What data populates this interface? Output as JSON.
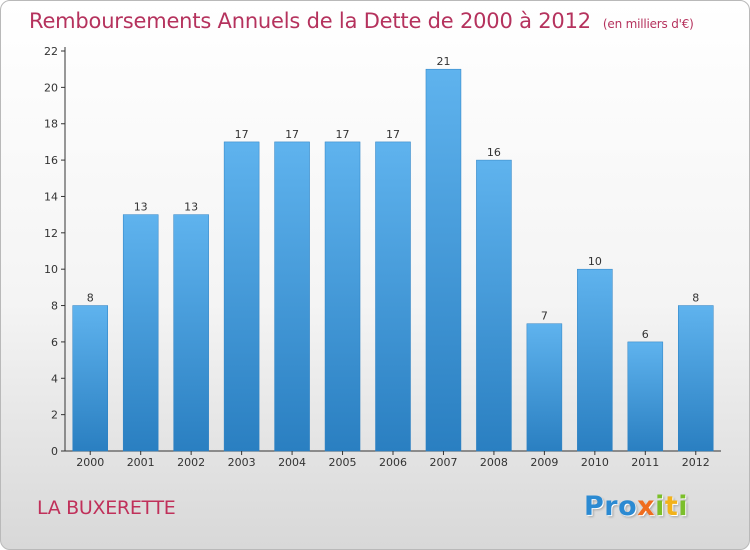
{
  "title": "Remboursements Annuels de la Dette de 2000 à 2012",
  "unit": "(en milliers d'€)",
  "commune": "LA BUXERETTE",
  "logo_text": "Proxiti",
  "colors": {
    "title": "#b5325d",
    "bar_top": "#5fb3ee",
    "bar_bottom": "#2a7fc1",
    "axis": "#333333"
  },
  "chart_data": {
    "type": "bar",
    "title": "Remboursements Annuels de la Dette de 2000 à 2012",
    "categories": [
      "2000",
      "2001",
      "2002",
      "2003",
      "2004",
      "2005",
      "2006",
      "2007",
      "2008",
      "2009",
      "2010",
      "2011",
      "2012"
    ],
    "values": [
      8,
      13,
      13,
      17,
      17,
      17,
      17,
      21,
      16,
      7,
      10,
      6,
      8
    ],
    "data_labels": [
      "8",
      "13",
      "13",
      "17",
      "17",
      "17",
      "17",
      "21",
      "16",
      "7",
      "10",
      "6",
      "8"
    ],
    "ylim": [
      0,
      22
    ],
    "yticks": [
      0,
      2,
      4,
      6,
      8,
      10,
      12,
      14,
      16,
      18,
      20,
      22
    ],
    "grid": false,
    "legend": "none"
  }
}
